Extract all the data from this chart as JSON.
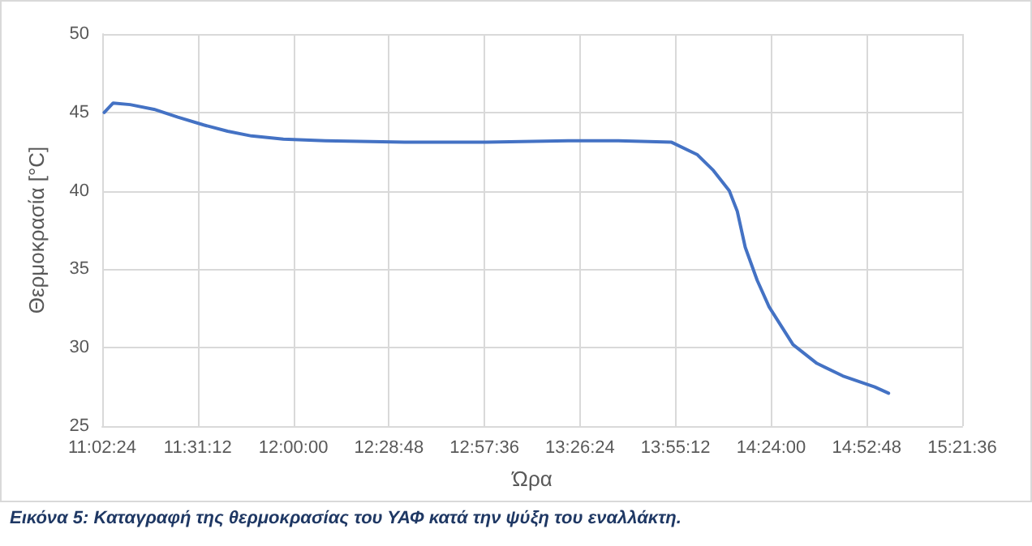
{
  "chart_data": {
    "type": "line",
    "xlabel": "Ώρα",
    "ylabel": "Θερμοκρασία [°C]",
    "annotations": [
      "Εικόνα 5: Καταγραφή της θερμοκρασίας του ΥΑΦ κατά την ψύξη του εναλλάκτη."
    ],
    "x": [
      11.05,
      11.095,
      11.18,
      11.3,
      11.42,
      11.55,
      11.67,
      11.79,
      11.95,
      12.16,
      12.56,
      12.97,
      13.38,
      13.62,
      13.9,
      14.03,
      14.11,
      14.19,
      14.23,
      14.27,
      14.33,
      14.39,
      14.51,
      14.63,
      14.76,
      14.92,
      14.99
    ],
    "series": [
      {
        "color": "#4472c4",
        "values": [
          45.0,
          45.6,
          45.5,
          45.2,
          44.7,
          44.2,
          43.8,
          43.5,
          43.3,
          43.2,
          43.1,
          43.1,
          43.2,
          43.2,
          43.1,
          42.3,
          41.3,
          40.0,
          38.7,
          36.4,
          34.3,
          32.6,
          30.2,
          29.0,
          28.2,
          27.5,
          27.1
        ]
      }
    ],
    "xlim": [
      11.04,
      15.36
    ],
    "xticks": [
      {
        "value": 11.04,
        "label": "11:02:24"
      },
      {
        "value": 11.52,
        "label": "11:31:12"
      },
      {
        "value": 12.0,
        "label": "12:00:00"
      },
      {
        "value": 12.48,
        "label": "12:28:48"
      },
      {
        "value": 12.96,
        "label": "12:57:36"
      },
      {
        "value": 13.44,
        "label": "13:26:24"
      },
      {
        "value": 13.92,
        "label": "13:55:12"
      },
      {
        "value": 14.4,
        "label": "14:24:00"
      },
      {
        "value": 14.88,
        "label": "14:52:48"
      },
      {
        "value": 15.36,
        "label": "15:21:36"
      }
    ],
    "ylim": [
      25,
      50
    ],
    "yticks": [
      25,
      30,
      35,
      40,
      45,
      50
    ],
    "grid": true,
    "marker": "none",
    "line_style": "solid"
  }
}
